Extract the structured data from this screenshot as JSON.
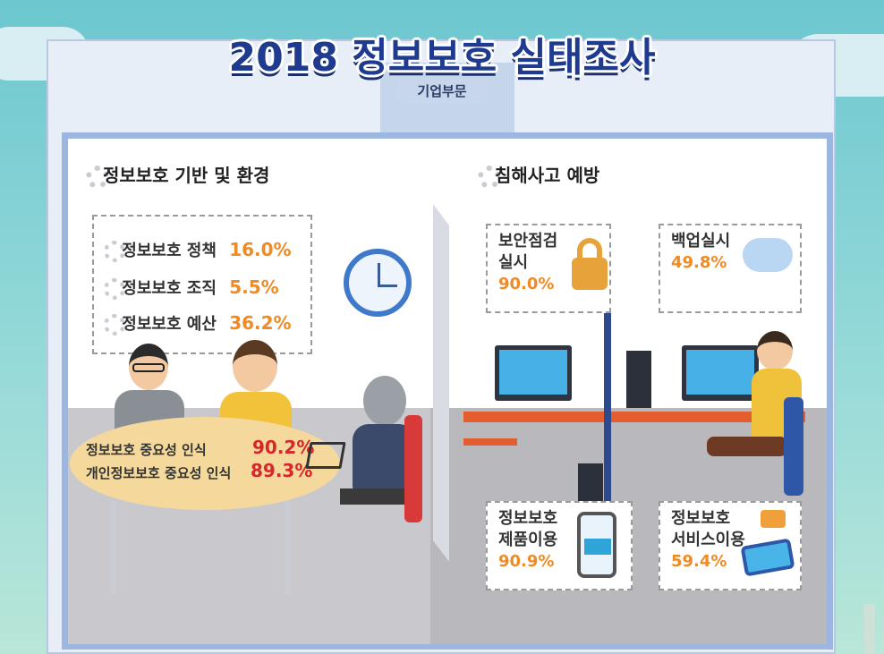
{
  "header": {
    "title": "2018 정보보호 실태조사",
    "subtitle": "기업부문"
  },
  "left_section": {
    "heading": "정보보호 기반 및 환경",
    "items": [
      {
        "label": "정보보호 정책",
        "value": "16.0%"
      },
      {
        "label": "정보보호 조직",
        "value": "5.5%"
      },
      {
        "label": "정보보호 예산",
        "value": "36.2%"
      }
    ],
    "awareness": [
      {
        "label": "정보보호 중요성 인식",
        "value": "90.2%"
      },
      {
        "label": "개인정보보호 중요성 인식",
        "value": "89.3%"
      }
    ]
  },
  "right_section": {
    "heading": "침해사고 예방",
    "cards": [
      {
        "label_line1": "보안점검",
        "label_line2": "실시",
        "value": "90.0%",
        "icon": "padlock-icon"
      },
      {
        "label_line1": "백업실시",
        "label_line2": "",
        "value": "49.8%",
        "icon": "cloud-icon"
      },
      {
        "label_line1": "정보보호",
        "label_line2": "제품이용",
        "value": "90.9%",
        "icon": "card-payment-icon"
      },
      {
        "label_line1": "정보보호",
        "label_line2": "서비스이용",
        "value": "59.4%",
        "icon": "smartphone-icon"
      }
    ]
  },
  "colors": {
    "title": "#1f3b8f",
    "orange": "#f08a24",
    "red": "#d4282a",
    "frame": "#9cb6df"
  }
}
